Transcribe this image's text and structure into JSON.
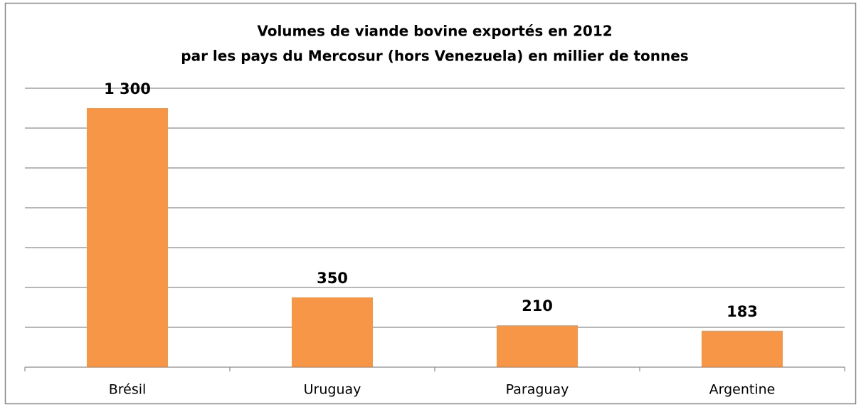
{
  "chart_data": {
    "type": "bar",
    "title": [
      "Volumes de viande bovine exportés en 2012",
      "par les pays du Mercosur (hors Venezuela) en millier de tonnes"
    ],
    "categories": [
      "Brésil",
      "Uruguay",
      "Paraguay",
      "Argentine"
    ],
    "values": [
      1300,
      350,
      210,
      183
    ],
    "value_labels": [
      "1 300",
      "350",
      "210",
      "183"
    ],
    "color": "#f79646",
    "ylim": [
      0,
      1400
    ],
    "yticks": [
      200,
      400,
      600,
      800,
      1000,
      1200,
      1400
    ],
    "grid": true
  }
}
